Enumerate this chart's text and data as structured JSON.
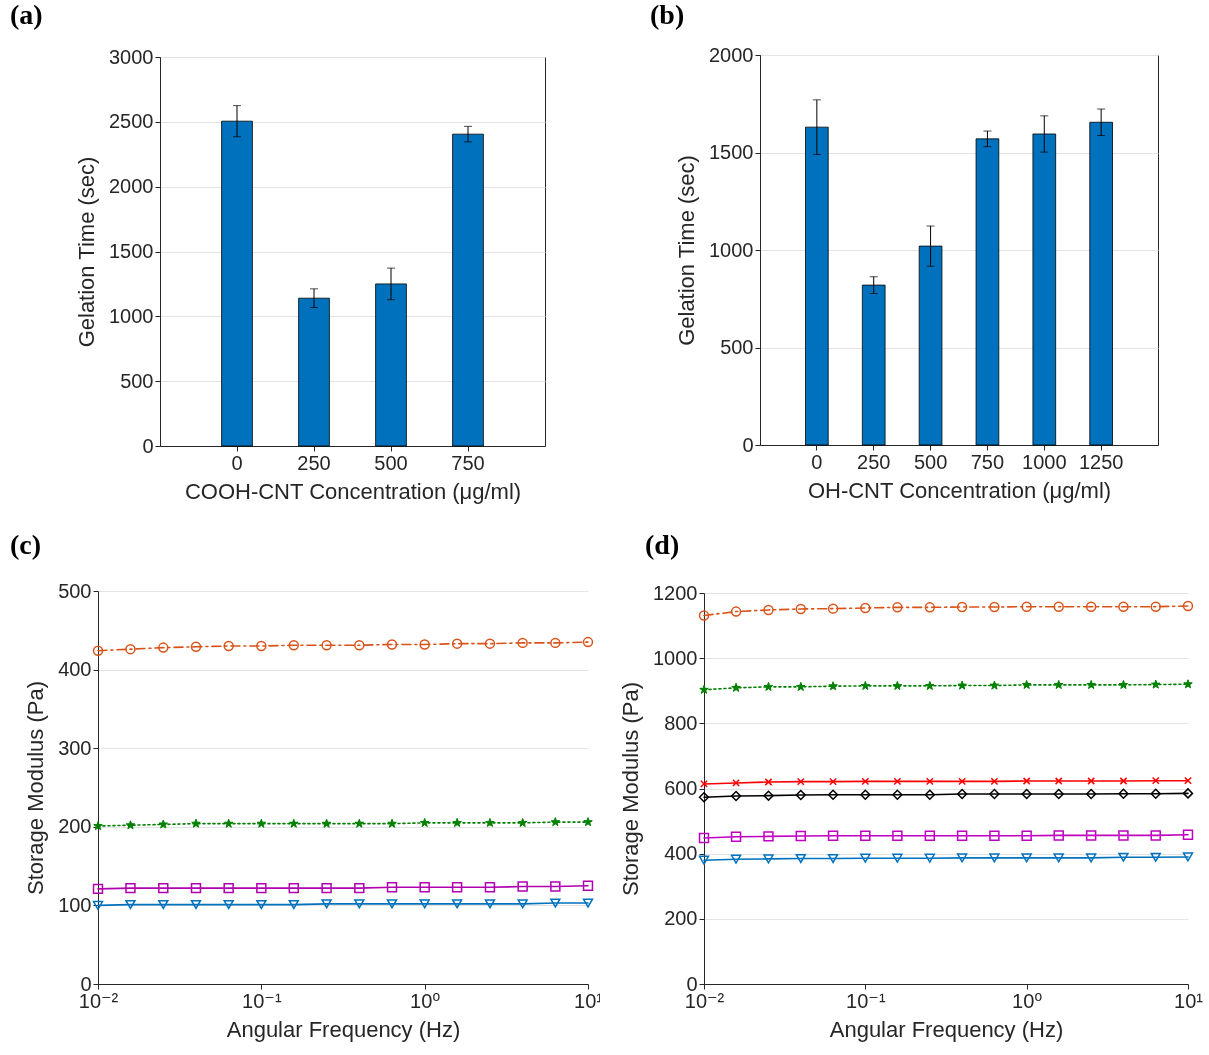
{
  "chart_data": [
    {
      "type": "bar",
      "title": "(a)",
      "xlabel": "COOH-CNT Concentration (μg/ml)",
      "ylabel": "Gelation Time (sec)",
      "categories": [
        "0",
        "250",
        "500",
        "750"
      ],
      "values": [
        2505,
        1140,
        1250,
        2405
      ],
      "errors": [
        120,
        72,
        122,
        60
      ],
      "color": "#0072bd",
      "ylim": [
        0,
        3000
      ],
      "yticks": [
        0,
        500,
        1000,
        1500,
        2000,
        2500,
        3000
      ],
      "grid": "y"
    },
    {
      "type": "bar",
      "title": "(b)",
      "xlabel": "OH-CNT Concentration (μg/ml)",
      "ylabel": "Gelation Time (sec)",
      "categories": [
        "0",
        "250",
        "500",
        "750",
        "1000",
        "1250"
      ],
      "values": [
        1630,
        820,
        1020,
        1570,
        1595,
        1655
      ],
      "errors": [
        140,
        43,
        103,
        40,
        93,
        68
      ],
      "color": "#0072bd",
      "ylim": [
        0,
        2000
      ],
      "yticks": [
        0,
        500,
        1000,
        1500,
        2000
      ],
      "grid": "y"
    },
    {
      "type": "line",
      "title": "(c)",
      "xlabel": "Angular Frequency (Hz)",
      "ylabel": "Storage Modulus (Pa)",
      "log": "x",
      "x": [
        0.01,
        0.0158,
        0.0251,
        0.0398,
        0.0631,
        0.1,
        0.158,
        0.251,
        0.398,
        0.631,
        1,
        1.58,
        2.51,
        3.98,
        6.31,
        10
      ],
      "xlim": [
        0.01,
        10
      ],
      "xticks": [
        {
          "value": 0.01,
          "label": "10⁻²"
        },
        {
          "value": 0.1,
          "label": "10⁻¹"
        },
        {
          "value": 1,
          "label": "10⁰"
        },
        {
          "value": 10,
          "label": "10¹"
        }
      ],
      "ylim": [
        0,
        500
      ],
      "yticks": [
        0,
        100,
        200,
        300,
        400,
        500
      ],
      "grid": "y",
      "series": [
        {
          "color": "#d95319",
          "marker": "circle",
          "line_style": "dashed",
          "values": [
            424,
            426,
            428,
            429,
            430,
            430,
            431,
            431,
            431,
            432,
            432,
            433,
            433,
            434,
            434,
            435
          ]
        },
        {
          "color": "#008000",
          "marker": "star",
          "line_style": "dotted",
          "values": [
            201,
            202,
            203,
            204,
            204,
            204,
            204,
            204,
            204,
            204,
            205,
            205,
            205,
            205,
            206,
            206
          ]
        },
        {
          "color": "#b000b0",
          "marker": "square",
          "line_style": "solid",
          "values": [
            121,
            122,
            122,
            122,
            122,
            122,
            122,
            122,
            122,
            123,
            123,
            123,
            123,
            124,
            124,
            125
          ]
        },
        {
          "color": "#0072bd",
          "marker": "triangle",
          "line_style": "solid",
          "values": [
            100,
            101,
            101,
            101,
            101,
            101,
            101,
            102,
            102,
            102,
            102,
            102,
            102,
            102,
            103,
            103
          ]
        }
      ]
    },
    {
      "type": "line",
      "title": "(d)",
      "xlabel": "Angular Frequency (Hz)",
      "ylabel": "Storage Modulus (Pa)",
      "log": "x",
      "x": [
        0.01,
        0.0158,
        0.0251,
        0.0398,
        0.0631,
        0.1,
        0.158,
        0.251,
        0.398,
        0.631,
        1,
        1.58,
        2.51,
        3.98,
        6.31,
        10
      ],
      "xlim": [
        0.01,
        10
      ],
      "xticks": [
        {
          "value": 0.01,
          "label": "10⁻²"
        },
        {
          "value": 0.1,
          "label": "10⁻¹"
        },
        {
          "value": 1,
          "label": "10⁰"
        },
        {
          "value": 10,
          "label": "10¹"
        }
      ],
      "ylim": [
        0,
        1200
      ],
      "yticks": [
        0,
        200,
        400,
        600,
        800,
        1000,
        1200
      ],
      "grid": "y",
      "series": [
        {
          "color": "#d95319",
          "marker": "circle",
          "line_style": "dashed",
          "values": [
            1131,
            1143,
            1148,
            1151,
            1152,
            1154,
            1156,
            1156,
            1157,
            1157,
            1158,
            1158,
            1158,
            1158,
            1158,
            1160
          ]
        },
        {
          "color": "#008000",
          "marker": "star",
          "line_style": "dotted",
          "values": [
            903,
            909,
            912,
            912,
            914,
            915,
            915,
            915,
            916,
            916,
            918,
            918,
            918,
            918,
            919,
            920
          ]
        },
        {
          "color": "#ff0000",
          "marker": "cross",
          "line_style": "solid",
          "values": [
            614,
            617,
            620,
            621,
            621,
            622,
            622,
            622,
            622,
            622,
            623,
            623,
            623,
            623,
            624,
            624
          ]
        },
        {
          "color": "#000000",
          "marker": "diamond",
          "line_style": "solid",
          "values": [
            573,
            577,
            578,
            580,
            581,
            581,
            581,
            581,
            583,
            583,
            583,
            583,
            583,
            584,
            584,
            585
          ]
        },
        {
          "color": "#c000c0",
          "marker": "square",
          "line_style": "solid",
          "values": [
            448,
            452,
            453,
            454,
            455,
            455,
            455,
            455,
            455,
            455,
            455,
            456,
            456,
            456,
            456,
            458
          ]
        },
        {
          "color": "#0072bd",
          "marker": "triangle",
          "line_style": "solid",
          "values": [
            380,
            383,
            384,
            385,
            385,
            386,
            386,
            386,
            387,
            387,
            387,
            387,
            387,
            389,
            389,
            390
          ]
        }
      ]
    }
  ]
}
